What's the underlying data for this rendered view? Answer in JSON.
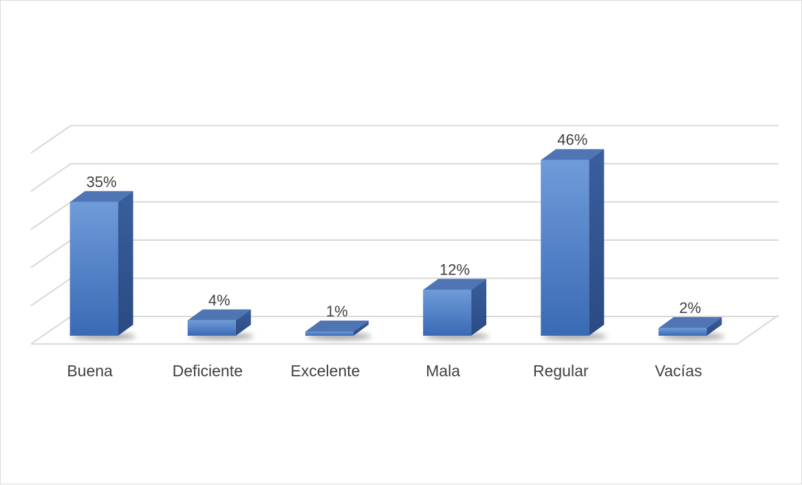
{
  "chart_data": {
    "type": "bar",
    "categories": [
      "Buena",
      "Deficiente",
      "Excelente",
      "Mala",
      "Regular",
      "Vacías"
    ],
    "values": [
      35,
      4,
      1,
      12,
      46,
      2
    ],
    "data_labels": [
      "35%",
      "4%",
      "1%",
      "12%",
      "46%",
      "2%"
    ],
    "title": "",
    "xlabel": "",
    "ylabel": "",
    "ylim": [
      0,
      50
    ],
    "grid": true,
    "legend": "none",
    "style": "3d-column",
    "colors": {
      "bar_front_top": "#6f9bd9",
      "bar_front_bottom": "#3a6ab5",
      "bar_side": "#2f5593",
      "bar_top": "#4f75b4",
      "grid": "#d9d9d9",
      "text": "#404040"
    }
  }
}
